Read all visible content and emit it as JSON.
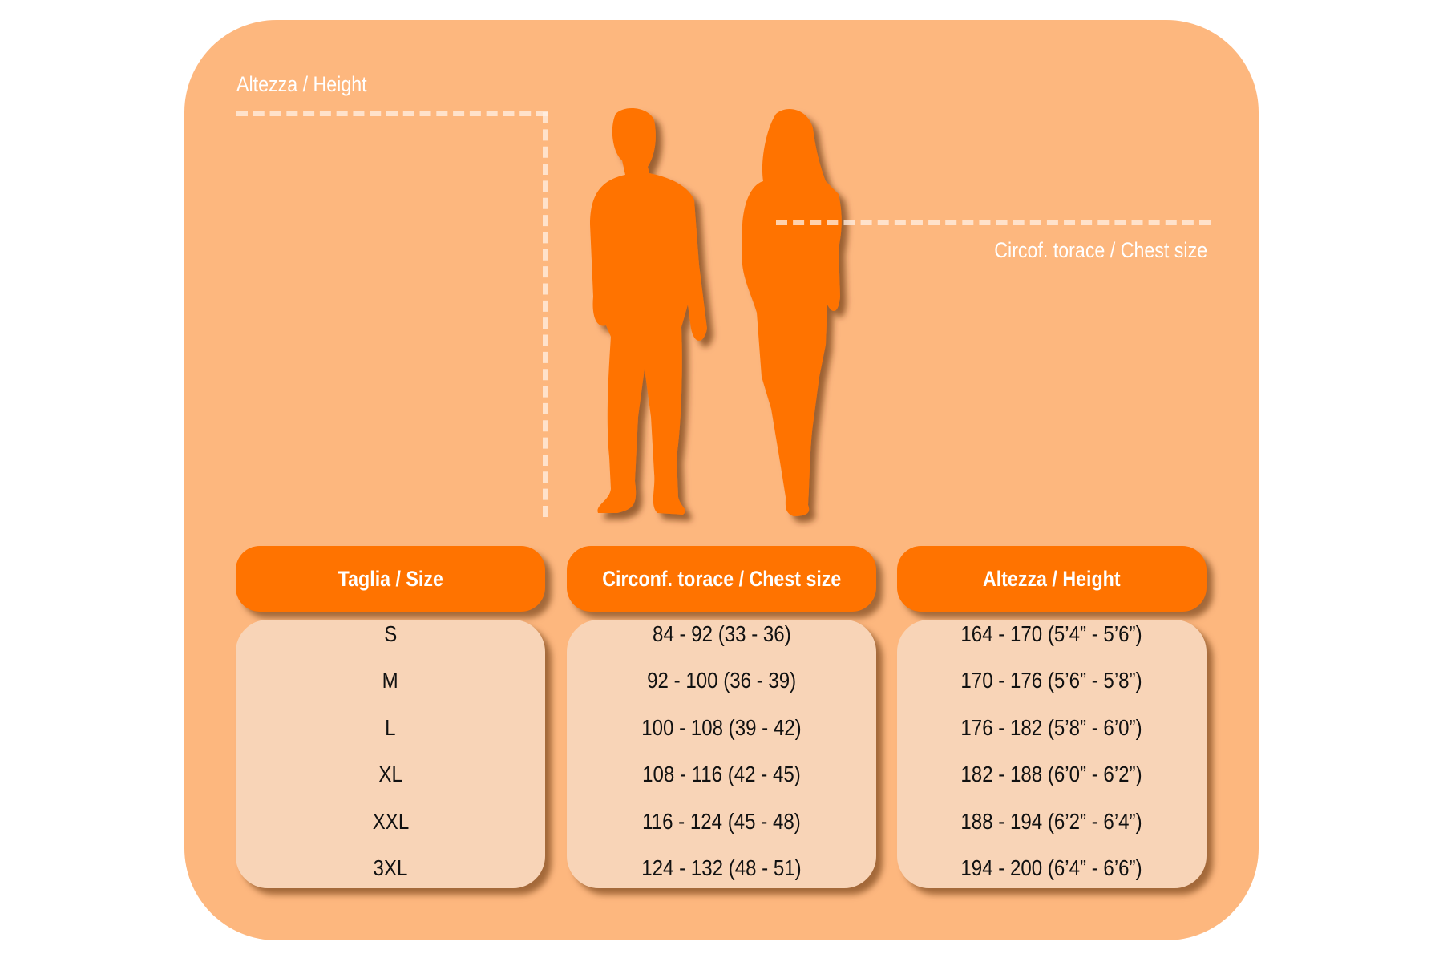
{
  "colors": {
    "panel": "#fdb77e",
    "header": "#ff7300",
    "cell": "#f8d4b7",
    "silhouette": "#ff7300"
  },
  "illustration": {
    "height_label": "Altezza / Height",
    "chest_label": "Circof. torace / Chest size",
    "figures": [
      "man-silhouette",
      "woman-silhouette"
    ]
  },
  "table": {
    "headers": [
      "Taglia / Size",
      "Circonf. torace / Chest size",
      "Altezza / Height"
    ],
    "columns": [
      [
        "S",
        "M",
        "L",
        "XL",
        "XXL",
        "3XL"
      ],
      [
        "84 - 92 (33 - 36)",
        "92 - 100 (36 - 39)",
        "100 - 108 (39 - 42)",
        "108 - 116 (42 - 45)",
        "116 - 124 (45 - 48)",
        "124 - 132 (48 - 51)"
      ],
      [
        "164 - 170 (5’4” - 5’6”)",
        "170 - 176 (5’6” - 5’8”)",
        "176 - 182 (5’8” - 6’0”)",
        "182 - 188 (6’0” - 6’2”)",
        "188 - 194 (6’2” - 6’4”)",
        "194 - 200 (6’4” - 6’6”)"
      ]
    ]
  }
}
